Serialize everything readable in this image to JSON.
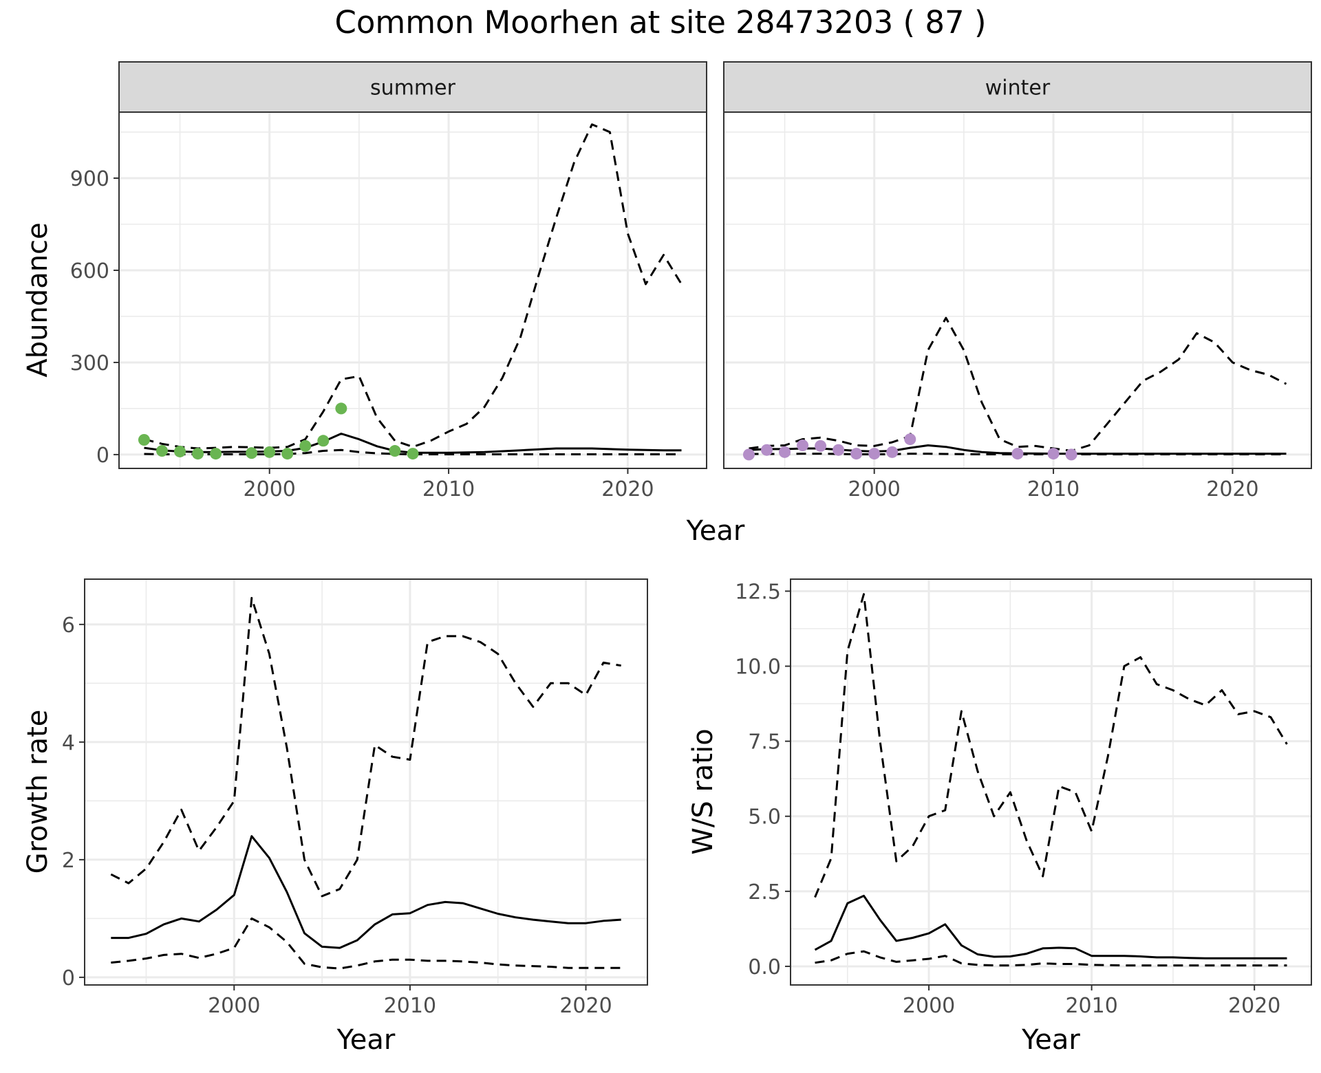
{
  "title": "Common Moorhen at site 28473203 ( 87 )",
  "colors": {
    "summer_points": "#6ab552",
    "winter_points": "#b48ec8",
    "line": "#000000",
    "grid": "#ebebeb",
    "strip": "#d9d9d9"
  },
  "chart_data": [
    {
      "type": "line",
      "panel": "summer",
      "strip_label": "summer",
      "xlabel": "Year",
      "ylabel": "Abundance",
      "xlim": [
        1991.6,
        2024.4
      ],
      "ylim": [
        -45,
        1115
      ],
      "xticks": [
        2000,
        2010,
        2020
      ],
      "xtick_labels": [
        "2000",
        "2010",
        "2020"
      ],
      "yticks": [
        0,
        300,
        600,
        900
      ],
      "ytick_labels": [
        "0",
        "300",
        "600",
        "900"
      ],
      "grid": true,
      "series": [
        {
          "style": "solid",
          "x": [
            1993,
            1994,
            1995,
            1996,
            1997,
            1998,
            1999,
            2000,
            2001,
            2002,
            2003,
            2004,
            2005,
            2006,
            2007,
            2008,
            2010,
            2012,
            2014,
            2016,
            2018,
            2020,
            2022,
            2023
          ],
          "y": [
            22,
            14,
            10,
            8,
            8,
            9,
            9,
            10,
            12,
            22,
            42,
            68,
            50,
            27,
            12,
            6,
            6,
            8,
            14,
            20,
            20,
            16,
            14,
            14
          ]
        },
        {
          "style": "dashed",
          "x": [
            1993,
            1994,
            1995,
            1996,
            1997,
            1998,
            1999,
            2000,
            2001,
            2002,
            2003,
            2004,
            2005,
            2006,
            2007,
            2008,
            2009,
            2010,
            2011,
            2012,
            2013,
            2014,
            2015,
            2016,
            2017,
            2018,
            2019,
            2020,
            2021,
            2022,
            2023
          ],
          "y": [
            50,
            35,
            25,
            20,
            22,
            25,
            24,
            22,
            25,
            50,
            140,
            245,
            255,
            120,
            45,
            25,
            45,
            75,
            100,
            155,
            250,
            380,
            580,
            770,
            950,
            1075,
            1050,
            720,
            555,
            650,
            555
          ]
        },
        {
          "style": "dashed",
          "x": [
            1993,
            1994,
            1995,
            1996,
            1997,
            1998,
            1999,
            2000,
            2001,
            2002,
            2003,
            2004,
            2005,
            2006,
            2007,
            2008,
            2010,
            2012,
            2014,
            2016,
            2018,
            2020,
            2022,
            2023
          ],
          "y": [
            2,
            1,
            1,
            1,
            1,
            1,
            1,
            1,
            2,
            5,
            12,
            15,
            8,
            4,
            2,
            1,
            1,
            1,
            1,
            1,
            1,
            1,
            1,
            1
          ]
        }
      ],
      "points": {
        "x": [
          1993,
          1994,
          1995,
          1996,
          1997,
          1999,
          2000,
          2001,
          2002,
          2003,
          2004,
          2007,
          2008
        ],
        "y": [
          48,
          12,
          10,
          3,
          3,
          5,
          8,
          3,
          28,
          45,
          150,
          12,
          3
        ]
      }
    },
    {
      "type": "line",
      "panel": "winter",
      "strip_label": "winter",
      "xlabel": "Year",
      "ylabel": "",
      "xlim": [
        1991.6,
        2024.4
      ],
      "ylim": [
        -45,
        1115
      ],
      "xticks": [
        2000,
        2010,
        2020
      ],
      "xtick_labels": [
        "2000",
        "2010",
        "2020"
      ],
      "yticks": [
        0,
        300,
        600,
        900
      ],
      "grid": true,
      "series": [
        {
          "style": "solid",
          "x": [
            1993,
            1994,
            1995,
            1996,
            1997,
            1998,
            1999,
            2000,
            2001,
            2002,
            2003,
            2004,
            2005,
            2006,
            2007,
            2008,
            2010,
            2012,
            2014,
            2016,
            2018,
            2020,
            2022,
            2023
          ],
          "y": [
            15,
            18,
            18,
            20,
            20,
            16,
            12,
            10,
            12,
            22,
            30,
            25,
            15,
            8,
            5,
            4,
            3,
            3,
            3,
            3,
            3,
            3,
            3,
            3
          ]
        },
        {
          "style": "dashed",
          "x": [
            1993,
            1994,
            1995,
            1996,
            1997,
            1998,
            1999,
            2000,
            2001,
            2002,
            2003,
            2004,
            2005,
            2006,
            2007,
            2008,
            2009,
            2010,
            2011,
            2012,
            2013,
            2014,
            2015,
            2016,
            2017,
            2018,
            2019,
            2020,
            2021,
            2022,
            2023
          ],
          "y": [
            20,
            28,
            30,
            50,
            55,
            45,
            30,
            28,
            40,
            60,
            340,
            445,
            340,
            170,
            50,
            25,
            28,
            20,
            12,
            30,
            100,
            170,
            240,
            270,
            310,
            395,
            365,
            300,
            275,
            260,
            230
          ]
        },
        {
          "style": "dashed",
          "x": [
            1993,
            1994,
            1995,
            1996,
            1997,
            1998,
            1999,
            2000,
            2001,
            2002,
            2003,
            2004,
            2006,
            2008,
            2010,
            2012,
            2014,
            2016,
            2018,
            2020,
            2022,
            2023
          ],
          "y": [
            2,
            2,
            2,
            3,
            3,
            2,
            1,
            1,
            1,
            3,
            3,
            2,
            1,
            1,
            1,
            1,
            1,
            1,
            1,
            1,
            1,
            1
          ]
        }
      ],
      "points": {
        "x": [
          1993,
          1994,
          1995,
          1996,
          1997,
          1998,
          1999,
          2000,
          2001,
          2002,
          2008,
          2010,
          2011
        ],
        "y": [
          0,
          15,
          8,
          30,
          28,
          15,
          3,
          3,
          8,
          50,
          3,
          3,
          0
        ]
      }
    },
    {
      "type": "line",
      "panel": "growth",
      "xlabel": "Year",
      "ylabel": "Growth rate",
      "xlim": [
        1991.5,
        2023.5
      ],
      "ylim": [
        -0.13,
        6.77
      ],
      "xticks": [
        2000,
        2010,
        2020
      ],
      "xtick_labels": [
        "2000",
        "2010",
        "2020"
      ],
      "yticks": [
        0,
        2,
        4,
        6
      ],
      "ytick_labels": [
        "0",
        "2",
        "4",
        "6"
      ],
      "grid": true,
      "series": [
        {
          "style": "solid",
          "x": [
            1993,
            1994,
            1995,
            1996,
            1997,
            1998,
            1999,
            2000,
            2001,
            2002,
            2003,
            2004,
            2005,
            2006,
            2007,
            2008,
            2009,
            2010,
            2011,
            2012,
            2013,
            2014,
            2015,
            2016,
            2017,
            2018,
            2019,
            2020,
            2021,
            2022
          ],
          "y": [
            0.67,
            0.67,
            0.74,
            0.9,
            1.0,
            0.95,
            1.15,
            1.4,
            2.4,
            2.03,
            1.45,
            0.75,
            0.52,
            0.5,
            0.63,
            0.9,
            1.07,
            1.09,
            1.23,
            1.28,
            1.26,
            1.17,
            1.08,
            1.02,
            0.98,
            0.95,
            0.92,
            0.92,
            0.96,
            0.98
          ]
        },
        {
          "style": "dashed",
          "x": [
            1993,
            1994,
            1995,
            1996,
            1997,
            1998,
            1999,
            2000,
            2001,
            2002,
            2003,
            2004,
            2005,
            2006,
            2007,
            2008,
            2009,
            2010,
            2011,
            2012,
            2013,
            2014,
            2015,
            2016,
            2017,
            2018,
            2019,
            2020,
            2021,
            2022
          ],
          "y": [
            1.75,
            1.6,
            1.85,
            2.3,
            2.85,
            2.15,
            2.55,
            3.0,
            6.45,
            5.5,
            3.9,
            2.0,
            1.38,
            1.5,
            2.0,
            3.95,
            3.75,
            3.7,
            5.7,
            5.8,
            5.8,
            5.7,
            5.5,
            5.0,
            4.6,
            5.0,
            5.0,
            4.8,
            5.35,
            5.3
          ]
        },
        {
          "style": "dashed",
          "x": [
            1993,
            1994,
            1995,
            1996,
            1997,
            1998,
            1999,
            2000,
            2001,
            2002,
            2003,
            2004,
            2005,
            2006,
            2007,
            2008,
            2009,
            2010,
            2011,
            2012,
            2013,
            2014,
            2015,
            2016,
            2017,
            2018,
            2019,
            2020,
            2021,
            2022
          ],
          "y": [
            0.25,
            0.28,
            0.32,
            0.38,
            0.4,
            0.33,
            0.4,
            0.5,
            1.0,
            0.85,
            0.6,
            0.23,
            0.17,
            0.15,
            0.2,
            0.27,
            0.3,
            0.3,
            0.28,
            0.28,
            0.27,
            0.25,
            0.22,
            0.2,
            0.19,
            0.18,
            0.16,
            0.16,
            0.16,
            0.16
          ]
        }
      ]
    },
    {
      "type": "line",
      "panel": "ratio",
      "xlabel": "Year",
      "ylabel": "W/S ratio",
      "xlim": [
        1991.5,
        2023.5
      ],
      "ylim": [
        -0.62,
        12.9
      ],
      "xticks": [
        2000,
        2010,
        2020
      ],
      "xtick_labels": [
        "2000",
        "2010",
        "2020"
      ],
      "yticks": [
        0,
        2.5,
        5,
        7.5,
        10,
        12.5
      ],
      "ytick_labels": [
        "0.0",
        "2.5",
        "5.0",
        "7.5",
        "10.0",
        "12.5"
      ],
      "grid": true,
      "series": [
        {
          "style": "solid",
          "x": [
            1993,
            1994,
            1995,
            1996,
            1997,
            1998,
            1999,
            2000,
            2001,
            2002,
            2003,
            2004,
            2005,
            2006,
            2007,
            2008,
            2009,
            2010,
            2011,
            2012,
            2013,
            2014,
            2015,
            2016,
            2017,
            2018,
            2019,
            2020,
            2021,
            2022
          ],
          "y": [
            0.55,
            0.85,
            2.1,
            2.35,
            1.55,
            0.85,
            0.95,
            1.1,
            1.4,
            0.7,
            0.4,
            0.32,
            0.33,
            0.42,
            0.6,
            0.62,
            0.6,
            0.35,
            0.35,
            0.35,
            0.33,
            0.3,
            0.3,
            0.28,
            0.27,
            0.27,
            0.27,
            0.27,
            0.27,
            0.27
          ]
        },
        {
          "style": "dashed",
          "x": [
            1993,
            1994,
            1995,
            1996,
            1997,
            1998,
            1999,
            2000,
            2001,
            2002,
            2003,
            2004,
            2005,
            2006,
            2007,
            2008,
            2009,
            2010,
            2011,
            2012,
            2013,
            2014,
            2015,
            2016,
            2017,
            2018,
            2019,
            2020,
            2021,
            2022
          ],
          "y": [
            2.3,
            3.6,
            10.5,
            12.4,
            7.5,
            3.5,
            4.0,
            5.0,
            5.2,
            8.5,
            6.5,
            5.0,
            5.8,
            4.2,
            3.0,
            6.0,
            5.8,
            4.5,
            7.0,
            10.0,
            10.3,
            9.4,
            9.2,
            8.9,
            8.7,
            9.2,
            8.4,
            8.5,
            8.3,
            7.4
          ]
        },
        {
          "style": "dashed",
          "x": [
            1993,
            1994,
            1995,
            1996,
            1997,
            1998,
            1999,
            2000,
            2001,
            2002,
            2003,
            2004,
            2005,
            2006,
            2007,
            2008,
            2009,
            2010,
            2011,
            2012,
            2013,
            2014,
            2015,
            2016,
            2017,
            2018,
            2019,
            2020,
            2021,
            2022
          ],
          "y": [
            0.12,
            0.2,
            0.42,
            0.5,
            0.3,
            0.15,
            0.2,
            0.25,
            0.35,
            0.1,
            0.05,
            0.03,
            0.03,
            0.05,
            0.1,
            0.08,
            0.08,
            0.05,
            0.04,
            0.03,
            0.03,
            0.03,
            0.03,
            0.03,
            0.03,
            0.03,
            0.03,
            0.03,
            0.03,
            0.03
          ]
        }
      ]
    }
  ]
}
